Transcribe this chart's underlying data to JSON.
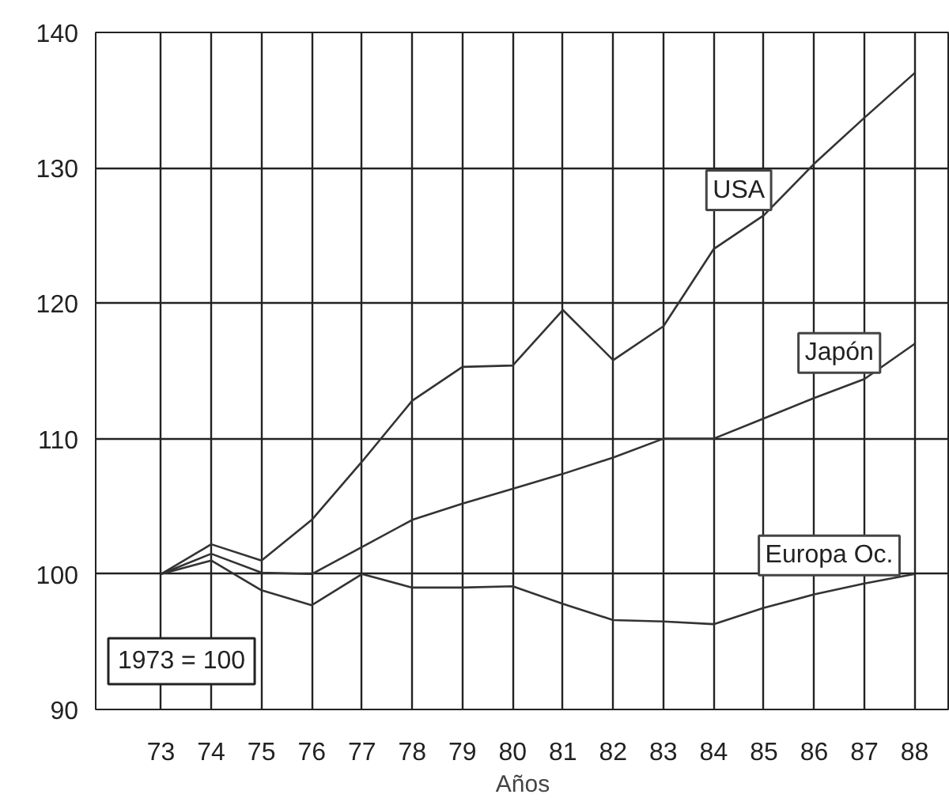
{
  "chart_data": {
    "type": "line",
    "xlabel": "Años",
    "x": [
      73,
      74,
      75,
      76,
      77,
      78,
      79,
      80,
      81,
      82,
      83,
      84,
      85,
      86,
      87,
      88
    ],
    "series": [
      {
        "name": "USA",
        "color": "#333333",
        "values": [
          100,
          102.2,
          101,
          104,
          108.3,
          112.8,
          115.3,
          115.4,
          119.5,
          115.8,
          118.3,
          124,
          126.5,
          130.3,
          133.7,
          137
        ]
      },
      {
        "name": "Japón",
        "color": "#333333",
        "values": [
          100,
          101.5,
          100.1,
          100,
          102,
          104,
          105.2,
          106.3,
          107.4,
          108.6,
          110,
          110,
          111.5,
          113,
          114.4,
          117
        ]
      },
      {
        "name": "Europa Oc.",
        "color": "#333333",
        "values": [
          100,
          101,
          98.8,
          97.7,
          100,
          99,
          99,
          99.1,
          97.8,
          96.6,
          96.5,
          96.3,
          97.5,
          98.5,
          99.3,
          100
        ]
      }
    ],
    "xlim": [
      71.7,
      88.7
    ],
    "ylim": [
      90,
      140
    ],
    "xticks": [
      73,
      74,
      75,
      76,
      77,
      78,
      79,
      80,
      81,
      82,
      83,
      84,
      85,
      86,
      87,
      88
    ],
    "yticks": [
      90,
      100,
      110,
      120,
      130,
      140
    ],
    "grid": true,
    "legend": false,
    "marker": "none",
    "line_style": "solid",
    "annotations": [
      "1973 = 100"
    ]
  }
}
